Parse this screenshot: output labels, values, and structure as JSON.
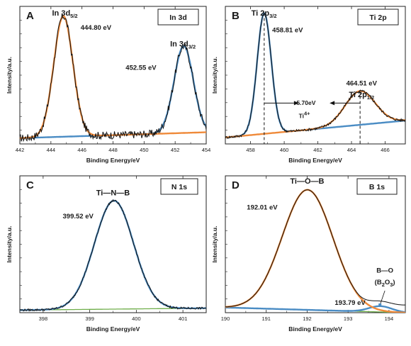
{
  "colors": {
    "measured": "#111111",
    "fit_orange": "#ef8a3a",
    "fit_blue": "#4a8cc4",
    "baseline_green": "#6fae4a"
  },
  "chart_data": [
    {
      "type": "line",
      "panel": "A",
      "tag": "In 3d",
      "xlabel": "Binding Energy/eV",
      "ylabel": "Intensity/a.u.",
      "xlim": [
        442,
        454
      ],
      "ylim": [
        0,
        1.06
      ],
      "xticks": [
        442,
        444,
        446,
        448,
        450,
        452,
        454
      ],
      "x_reversed": false,
      "peaks": [
        {
          "center": 444.8,
          "height": 0.93,
          "width": 0.62,
          "series": "orange"
        },
        {
          "center": 452.55,
          "height": 0.67,
          "width": 0.62,
          "series": "blue"
        }
      ],
      "background": [
        [
          442,
          0.045
        ],
        [
          454,
          0.09
        ]
      ],
      "noise": 0.03,
      "annotations": [
        {
          "id": "peak-label-1",
          "text": "In 3d",
          "sub": "5/2",
          "x": 444.9,
          "y": 0.99,
          "cls": "peak-text"
        },
        {
          "id": "energy-label-1",
          "text": "444.80 eV",
          "x": 446.9,
          "y": 0.88,
          "cls": "annot-text"
        },
        {
          "id": "peak-label-2",
          "text": "In 3d",
          "sub": "3/2",
          "x": 452.5,
          "y": 0.75,
          "cls": "peak-text"
        },
        {
          "id": "energy-label-2",
          "text": "452.55 eV",
          "x": 449.8,
          "y": 0.57,
          "cls": "annot-text"
        }
      ]
    },
    {
      "type": "line",
      "panel": "B",
      "tag": "Ti 2p",
      "xlabel": "Binding Energy/eV",
      "ylabel": "Intensity/a.u.",
      "xlim": [
        456.5,
        467.2
      ],
      "ylim": [
        0,
        1.06
      ],
      "xticks": [
        458,
        460,
        462,
        464,
        466
      ],
      "x_reversed": false,
      "peaks": [
        {
          "center": 458.81,
          "height": 0.93,
          "width": 0.42,
          "series": "blue"
        },
        {
          "center": 464.51,
          "height": 0.26,
          "width": 0.9,
          "series": "orange"
        }
      ],
      "background": [
        [
          456.5,
          0.05
        ],
        [
          467.2,
          0.18
        ]
      ],
      "noise": 0.01,
      "dashed_lines": [
        458.81,
        464.51
      ],
      "arrows": {
        "from": 458.81,
        "to": 464.51,
        "y": 0.315
      },
      "annotations": [
        {
          "id": "peak-label-1",
          "text": "Ti 2p",
          "sub": "3/2",
          "x": 458.8,
          "y": 0.99,
          "cls": "peak-text"
        },
        {
          "id": "energy-label-1",
          "text": "458.81 eV",
          "x": 460.2,
          "y": 0.86,
          "cls": "annot-text"
        },
        {
          "id": "energy-label-2",
          "text": "464.51 eV",
          "x": 464.6,
          "y": 0.45,
          "cls": "annot-text"
        },
        {
          "id": "peak-label-2",
          "text": "Ti 2p",
          "sub": "1/2",
          "x": 464.6,
          "y": 0.36,
          "cls": "peak-text"
        },
        {
          "id": "splitting-label",
          "text": "5.70eV",
          "x": 461.3,
          "y": 0.3,
          "cls": "small-annot"
        },
        {
          "id": "species-label",
          "text": "Ti",
          "sup": "4+",
          "x": 461.2,
          "y": 0.2,
          "cls": "small-annot"
        }
      ]
    },
    {
      "type": "line",
      "panel": "C",
      "tag": "N 1s",
      "xlabel": "Binding Energy/eV",
      "ylabel": "Intensity/a.u.",
      "xlim": [
        397.5,
        401.5
      ],
      "ylim": [
        0,
        1.06
      ],
      "xticks": [
        398,
        399,
        400,
        401
      ],
      "x_reversed": false,
      "peaks": [
        {
          "center": 399.52,
          "height": 0.84,
          "width": 0.42,
          "series": "blue"
        }
      ],
      "background": [
        [
          397.5,
          0.02
        ],
        [
          401.5,
          0.035
        ]
      ],
      "noise": 0.008,
      "annotations": [
        {
          "id": "bond-label",
          "text": "Ti—N—B",
          "x": 399.5,
          "y": 0.91,
          "cls": "peak-text"
        },
        {
          "id": "energy-label-1",
          "text": "399.52 eV",
          "x": 398.75,
          "y": 0.73,
          "cls": "annot-text"
        }
      ]
    },
    {
      "type": "line",
      "panel": "D",
      "tag": "B 1s",
      "xlabel": "Binding Energy/eV",
      "ylabel": "Intensity/a.u.",
      "xlim": [
        190,
        194.4
      ],
      "ylim": [
        0,
        1.06
      ],
      "xticks": [
        190,
        191,
        192,
        193,
        194
      ],
      "x_reversed": false,
      "peaks": [
        {
          "center": 192.01,
          "height": 0.93,
          "width": 0.62,
          "series": "orange"
        },
        {
          "center": 193.79,
          "height": 0.045,
          "width": 0.28,
          "series": "blue"
        }
      ],
      "background": [
        [
          190,
          0.04
        ],
        [
          194.4,
          0.0
        ]
      ],
      "noise": 0.0,
      "annotations": [
        {
          "id": "bond-label",
          "text": "Ti—O—B",
          "x": 192.0,
          "y": 1.0,
          "cls": "peak-text"
        },
        {
          "id": "energy-label-1",
          "text": "192.01 eV",
          "x": 190.9,
          "y": 0.8,
          "cls": "annot-text"
        },
        {
          "id": "energy-label-2",
          "text": "193.79 eV",
          "x": 193.05,
          "y": 0.06,
          "cls": "annot-text"
        },
        {
          "id": "bond-label-2",
          "text": "B—O",
          "x": 193.9,
          "y": 0.31,
          "cls": "annot-text"
        },
        {
          "id": "oxide-label",
          "text": "(B",
          "sub": "2",
          "text2": "O",
          "sub2": "3",
          "text3": ")",
          "x": 193.9,
          "y": 0.22,
          "cls": "annot-text"
        }
      ]
    }
  ]
}
